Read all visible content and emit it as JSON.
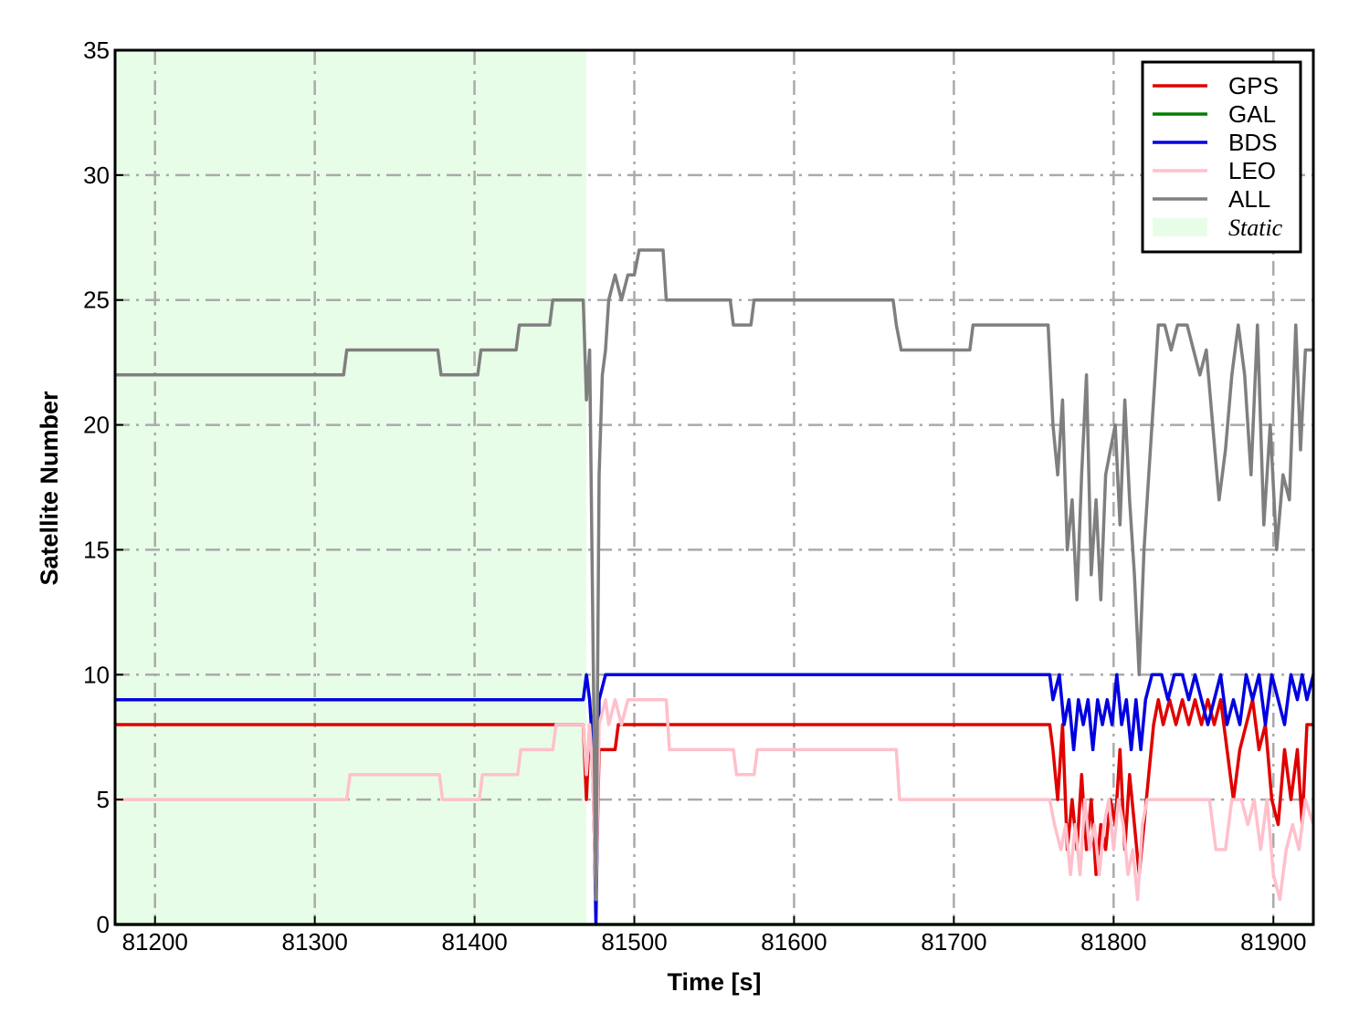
{
  "chart_data": {
    "type": "line",
    "xlabel": "Time [s]",
    "ylabel": "Satellite Number",
    "xlim": [
      81175,
      81925
    ],
    "ylim": [
      0,
      35
    ],
    "xticks": [
      81200,
      81300,
      81400,
      81500,
      81600,
      81700,
      81800,
      81900
    ],
    "yticks": [
      0,
      5,
      10,
      15,
      20,
      25,
      30,
      35
    ],
    "grid": true,
    "legend_position": "top-right",
    "shaded_regions": [
      {
        "name": "Static",
        "x_start": 81175,
        "x_end": 81470,
        "color": "#e8fde8"
      }
    ],
    "series": [
      {
        "name": "GPS",
        "color": "#e00000",
        "points": [
          [
            81175,
            8
          ],
          [
            81468,
            8
          ],
          [
            81470,
            5
          ],
          [
            81472,
            8
          ],
          [
            81474,
            6
          ],
          [
            81476,
            1
          ],
          [
            81478,
            7
          ],
          [
            81488,
            7
          ],
          [
            81490,
            8
          ],
          [
            81760,
            8
          ],
          [
            81762,
            7
          ],
          [
            81765,
            5
          ],
          [
            81768,
            8
          ],
          [
            81771,
            3
          ],
          [
            81774,
            5
          ],
          [
            81777,
            3
          ],
          [
            81780,
            6
          ],
          [
            81783,
            3
          ],
          [
            81786,
            5
          ],
          [
            81789,
            2
          ],
          [
            81792,
            4
          ],
          [
            81795,
            3
          ],
          [
            81798,
            5
          ],
          [
            81801,
            4
          ],
          [
            81804,
            7
          ],
          [
            81807,
            3
          ],
          [
            81810,
            6
          ],
          [
            81813,
            4
          ],
          [
            81816,
            2
          ],
          [
            81819,
            4
          ],
          [
            81822,
            6
          ],
          [
            81825,
            8
          ],
          [
            81828,
            9
          ],
          [
            81831,
            8
          ],
          [
            81835,
            9
          ],
          [
            81839,
            8
          ],
          [
            81843,
            9
          ],
          [
            81847,
            8
          ],
          [
            81851,
            9
          ],
          [
            81855,
            8
          ],
          [
            81859,
            9
          ],
          [
            81863,
            8
          ],
          [
            81867,
            9
          ],
          [
            81871,
            7
          ],
          [
            81875,
            5
          ],
          [
            81879,
            7
          ],
          [
            81883,
            8
          ],
          [
            81887,
            9
          ],
          [
            81891,
            7
          ],
          [
            81895,
            8
          ],
          [
            81899,
            5
          ],
          [
            81903,
            4
          ],
          [
            81907,
            7
          ],
          [
            81911,
            5
          ],
          [
            81915,
            7
          ],
          [
            81918,
            4
          ],
          [
            81921,
            8
          ],
          [
            81925,
            8
          ]
        ]
      },
      {
        "name": "GAL",
        "color": "#007f00",
        "points": [
          [
            81175,
            0
          ],
          [
            81925,
            0
          ]
        ]
      },
      {
        "name": "BDS",
        "color": "#0000e0",
        "points": [
          [
            81175,
            9
          ],
          [
            81468,
            9
          ],
          [
            81470,
            10
          ],
          [
            81472,
            9
          ],
          [
            81474,
            7
          ],
          [
            81476,
            0
          ],
          [
            81478,
            9
          ],
          [
            81482,
            10
          ],
          [
            81760,
            10
          ],
          [
            81762,
            9
          ],
          [
            81766,
            10
          ],
          [
            81769,
            8
          ],
          [
            81772,
            9
          ],
          [
            81775,
            7
          ],
          [
            81778,
            9
          ],
          [
            81781,
            8
          ],
          [
            81784,
            9
          ],
          [
            81787,
            7
          ],
          [
            81790,
            9
          ],
          [
            81793,
            8
          ],
          [
            81796,
            9
          ],
          [
            81799,
            8
          ],
          [
            81802,
            10
          ],
          [
            81805,
            8
          ],
          [
            81808,
            9
          ],
          [
            81811,
            7
          ],
          [
            81814,
            9
          ],
          [
            81817,
            7
          ],
          [
            81820,
            9
          ],
          [
            81824,
            10
          ],
          [
            81830,
            10
          ],
          [
            81834,
            9
          ],
          [
            81838,
            10
          ],
          [
            81843,
            10
          ],
          [
            81847,
            9
          ],
          [
            81851,
            10
          ],
          [
            81855,
            9
          ],
          [
            81859,
            8
          ],
          [
            81863,
            9
          ],
          [
            81867,
            10
          ],
          [
            81871,
            8
          ],
          [
            81875,
            9
          ],
          [
            81879,
            8
          ],
          [
            81883,
            10
          ],
          [
            81887,
            9
          ],
          [
            81891,
            10
          ],
          [
            81895,
            8
          ],
          [
            81899,
            10
          ],
          [
            81903,
            9
          ],
          [
            81907,
            8
          ],
          [
            81911,
            10
          ],
          [
            81915,
            9
          ],
          [
            81918,
            10
          ],
          [
            81921,
            9
          ],
          [
            81925,
            10
          ]
        ]
      },
      {
        "name": "LEO",
        "color": "#ffc0cb",
        "points": [
          [
            81175,
            5
          ],
          [
            81320,
            5
          ],
          [
            81322,
            6
          ],
          [
            81378,
            6
          ],
          [
            81380,
            5
          ],
          [
            81403,
            5
          ],
          [
            81405,
            6
          ],
          [
            81427,
            6
          ],
          [
            81429,
            7
          ],
          [
            81449,
            7
          ],
          [
            81451,
            8
          ],
          [
            81468,
            8
          ],
          [
            81470,
            6
          ],
          [
            81472,
            8
          ],
          [
            81474,
            6
          ],
          [
            81476,
            1
          ],
          [
            81478,
            8
          ],
          [
            81482,
            9
          ],
          [
            81484,
            8
          ],
          [
            81488,
            9
          ],
          [
            81492,
            8
          ],
          [
            81496,
            9
          ],
          [
            81520,
            9
          ],
          [
            81522,
            7
          ],
          [
            81562,
            7
          ],
          [
            81564,
            6
          ],
          [
            81575,
            6
          ],
          [
            81577,
            7
          ],
          [
            81664,
            7
          ],
          [
            81666,
            5
          ],
          [
            81760,
            5
          ],
          [
            81763,
            4
          ],
          [
            81767,
            3
          ],
          [
            81770,
            4
          ],
          [
            81773,
            2
          ],
          [
            81776,
            4
          ],
          [
            81779,
            2
          ],
          [
            81782,
            5
          ],
          [
            81785,
            3
          ],
          [
            81788,
            4
          ],
          [
            81791,
            2
          ],
          [
            81794,
            4
          ],
          [
            81797,
            5
          ],
          [
            81800,
            3
          ],
          [
            81803,
            5
          ],
          [
            81806,
            4
          ],
          [
            81809,
            2
          ],
          [
            81812,
            3
          ],
          [
            81815,
            1
          ],
          [
            81818,
            4
          ],
          [
            81821,
            5
          ],
          [
            81825,
            5
          ],
          [
            81860,
            5
          ],
          [
            81864,
            3
          ],
          [
            81870,
            3
          ],
          [
            81874,
            5
          ],
          [
            81880,
            5
          ],
          [
            81884,
            4
          ],
          [
            81888,
            5
          ],
          [
            81892,
            3
          ],
          [
            81896,
            5
          ],
          [
            81900,
            2
          ],
          [
            81904,
            1
          ],
          [
            81908,
            3
          ],
          [
            81912,
            4
          ],
          [
            81916,
            3
          ],
          [
            81920,
            5
          ],
          [
            81925,
            4
          ]
        ]
      },
      {
        "name": "ALL",
        "color": "#7f7f7f",
        "points": [
          [
            81175,
            22
          ],
          [
            81318,
            22
          ],
          [
            81320,
            23
          ],
          [
            81377,
            23
          ],
          [
            81379,
            22
          ],
          [
            81402,
            22
          ],
          [
            81404,
            23
          ],
          [
            81426,
            23
          ],
          [
            81428,
            24
          ],
          [
            81447,
            24
          ],
          [
            81449,
            25
          ],
          [
            81468,
            25
          ],
          [
            81470,
            21
          ],
          [
            81472,
            23
          ],
          [
            81474,
            12
          ],
          [
            81476,
            1
          ],
          [
            81478,
            18
          ],
          [
            81480,
            22
          ],
          [
            81482,
            23
          ],
          [
            81484,
            25
          ],
          [
            81488,
            26
          ],
          [
            81492,
            25
          ],
          [
            81496,
            26
          ],
          [
            81500,
            26
          ],
          [
            81503,
            27
          ],
          [
            81518,
            27
          ],
          [
            81520,
            25
          ],
          [
            81560,
            25
          ],
          [
            81562,
            24
          ],
          [
            81573,
            24
          ],
          [
            81575,
            25
          ],
          [
            81662,
            25
          ],
          [
            81664,
            24
          ],
          [
            81667,
            23
          ],
          [
            81710,
            23
          ],
          [
            81712,
            24
          ],
          [
            81759,
            24
          ],
          [
            81762,
            20
          ],
          [
            81765,
            18
          ],
          [
            81768,
            21
          ],
          [
            81771,
            15
          ],
          [
            81774,
            17
          ],
          [
            81777,
            13
          ],
          [
            81780,
            18
          ],
          [
            81783,
            22
          ],
          [
            81786,
            14
          ],
          [
            81789,
            17
          ],
          [
            81792,
            13
          ],
          [
            81795,
            18
          ],
          [
            81798,
            19
          ],
          [
            81801,
            20
          ],
          [
            81804,
            16
          ],
          [
            81807,
            21
          ],
          [
            81810,
            17
          ],
          [
            81813,
            14
          ],
          [
            81816,
            10
          ],
          [
            81819,
            15
          ],
          [
            81822,
            18
          ],
          [
            81825,
            21
          ],
          [
            81828,
            24
          ],
          [
            81832,
            24
          ],
          [
            81836,
            23
          ],
          [
            81840,
            24
          ],
          [
            81846,
            24
          ],
          [
            81850,
            23
          ],
          [
            81854,
            22
          ],
          [
            81858,
            23
          ],
          [
            81862,
            20
          ],
          [
            81866,
            17
          ],
          [
            81870,
            19
          ],
          [
            81874,
            22
          ],
          [
            81878,
            24
          ],
          [
            81882,
            22
          ],
          [
            81886,
            18
          ],
          [
            81890,
            24
          ],
          [
            81894,
            16
          ],
          [
            81898,
            20
          ],
          [
            81902,
            15
          ],
          [
            81906,
            18
          ],
          [
            81910,
            17
          ],
          [
            81914,
            24
          ],
          [
            81917,
            19
          ],
          [
            81920,
            23
          ],
          [
            81925,
            23
          ]
        ]
      }
    ]
  }
}
